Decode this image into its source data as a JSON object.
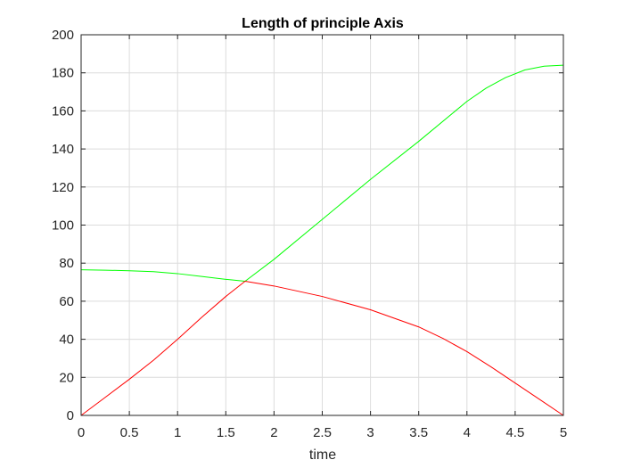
{
  "chart_data": {
    "type": "line",
    "title": "Length of principle Axis",
    "xlabel": "time",
    "ylabel": "",
    "xlim": [
      0,
      5
    ],
    "ylim": [
      0,
      200
    ],
    "xticks": [
      0,
      0.5,
      1,
      1.5,
      2,
      2.5,
      3,
      3.5,
      4,
      4.5,
      5
    ],
    "xtick_labels": [
      "0",
      "0.5",
      "1",
      "1.5",
      "2",
      "2.5",
      "3",
      "3.5",
      "4",
      "4.5",
      "5"
    ],
    "yticks": [
      0,
      20,
      40,
      60,
      80,
      100,
      120,
      140,
      160,
      180,
      200
    ],
    "ytick_labels": [
      "0",
      "20",
      "40",
      "60",
      "80",
      "100",
      "120",
      "140",
      "160",
      "180",
      "200"
    ],
    "grid": true,
    "series": [
      {
        "color": "#00ff00",
        "x": [
          0,
          0.25,
          0.5,
          0.75,
          1.0,
          1.25,
          1.5,
          1.7,
          2.0,
          2.5,
          3.0,
          3.5,
          4.0,
          4.2,
          4.4,
          4.6,
          4.8,
          5.0
        ],
        "y": [
          76.5,
          76.3,
          76.0,
          75.5,
          74.5,
          73.0,
          71.5,
          70.5,
          82.0,
          103.0,
          124.0,
          144.0,
          165.0,
          172.0,
          177.5,
          181.5,
          183.5,
          184.0
        ]
      },
      {
        "color": "#ff0000",
        "x": [
          0,
          0.25,
          0.5,
          0.75,
          1.0,
          1.25,
          1.5,
          1.7,
          2.0,
          2.5,
          3.0,
          3.5,
          3.75,
          4.0,
          4.25,
          4.5,
          4.75,
          5.0
        ],
        "y": [
          0,
          9.5,
          19.0,
          29.0,
          40.0,
          51.5,
          62.5,
          70.5,
          68.0,
          62.5,
          55.5,
          46.5,
          40.5,
          33.5,
          25.5,
          17.0,
          8.5,
          0
        ]
      }
    ]
  }
}
